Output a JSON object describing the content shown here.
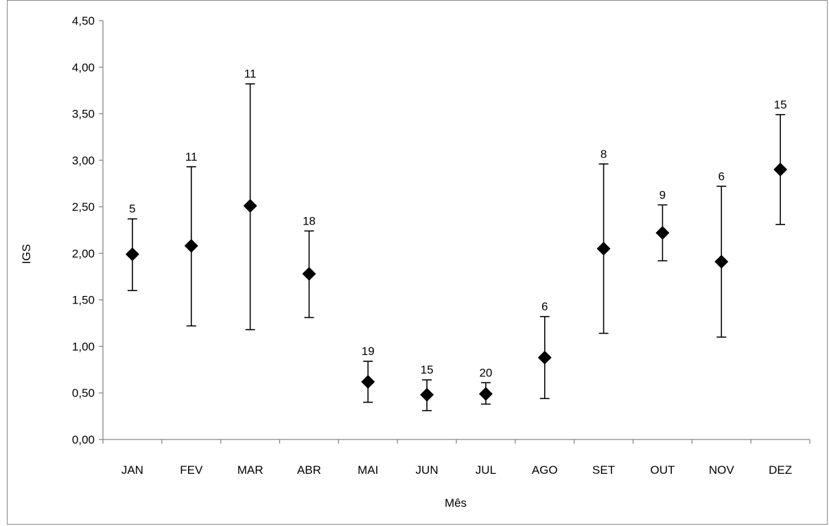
{
  "chart_data": {
    "type": "scatter",
    "title": "",
    "xlabel": "Mês",
    "ylabel": "IGS",
    "ylim": [
      0,
      4.5
    ],
    "ytick_step": 0.5,
    "ytick_labels": [
      "0,00",
      "0,50",
      "1,00",
      "1,50",
      "2,00",
      "2,50",
      "3,00",
      "3,50",
      "4,00",
      "4,50"
    ],
    "grid": false,
    "legend": "none",
    "categories": [
      "JAN",
      "FEV",
      "MAR",
      "ABR",
      "MAI",
      "JUN",
      "JUL",
      "AGO",
      "SET",
      "OUT",
      "NOV",
      "DEZ"
    ],
    "series": [
      {
        "values": [
          1.99,
          2.08,
          2.51,
          1.78,
          0.62,
          0.48,
          0.49,
          0.88,
          2.05,
          2.22,
          1.91,
          2.9
        ],
        "error_low": [
          1.6,
          1.22,
          1.18,
          1.31,
          0.4,
          0.31,
          0.38,
          0.44,
          1.14,
          1.92,
          1.1,
          2.31
        ],
        "error_high": [
          2.37,
          2.93,
          3.82,
          2.24,
          0.84,
          0.64,
          0.61,
          1.32,
          2.96,
          2.52,
          2.72,
          3.49
        ],
        "n_labels": [
          "5",
          "11",
          "11",
          "18",
          "19",
          "15",
          "20",
          "6",
          "8",
          "9",
          "6",
          "15"
        ]
      }
    ],
    "marker": "diamond",
    "marker_color": "#000000"
  }
}
